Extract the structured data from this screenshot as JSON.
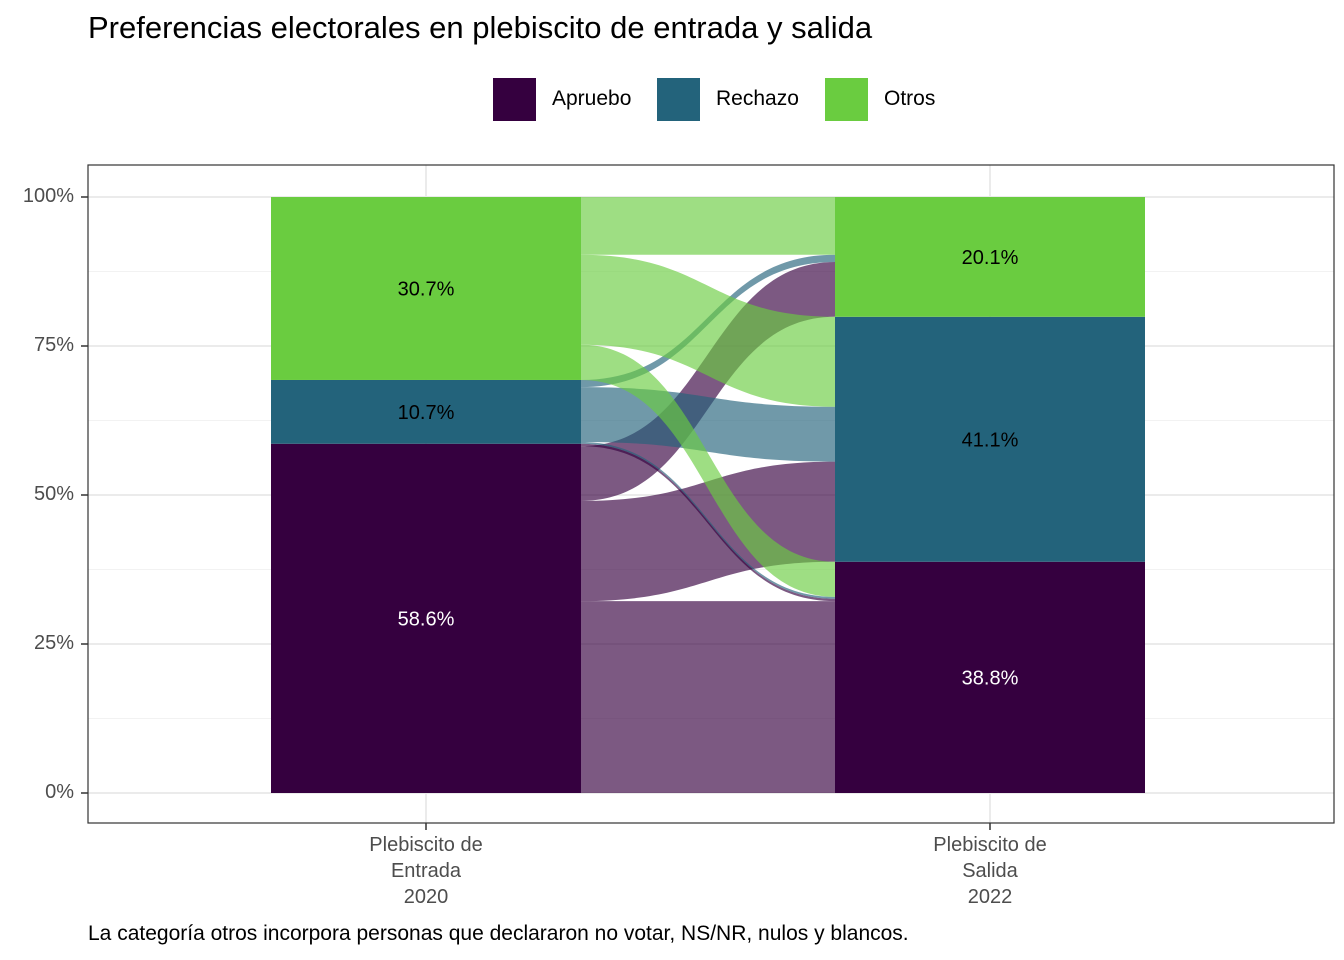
{
  "chart_data": {
    "type": "alluvial",
    "title": "Preferencias electorales en plebiscito de entrada y salida",
    "caption": "La categoría otros incorpora personas que declararon no votar, NS/NR, nulos y blancos.",
    "xlabel": "",
    "ylabel": "",
    "ylim": [
      0,
      1
    ],
    "y_ticks": [
      "0%",
      "25%",
      "50%",
      "75%",
      "100%"
    ],
    "y_tick_values": [
      0,
      0.25,
      0.5,
      0.75,
      1.0
    ],
    "legend_position": "top",
    "grid": true,
    "categories": [
      "Apruebo",
      "Rechazo",
      "Otros"
    ],
    "colors": {
      "Apruebo": "#35003f",
      "Rechazo": "#23637b",
      "Otros": "#6acc40"
    },
    "axes": [
      {
        "label_lines": [
          "Plebiscito de",
          "Entrada",
          "2020"
        ],
        "values": {
          "Apruebo": 58.6,
          "Rechazo": 10.7,
          "Otros": 30.7
        },
        "labels": {
          "Apruebo": "58.6%",
          "Rechazo": "10.7%",
          "Otros": "30.7%"
        }
      },
      {
        "label_lines": [
          "Plebiscito de",
          "Salida",
          "2022"
        ],
        "values": {
          "Apruebo": 38.8,
          "Rechazo": 41.1,
          "Otros": 20.1
        },
        "labels": {
          "Apruebo": "38.8%",
          "Rechazo": "41.1%",
          "Otros": "20.1%"
        }
      }
    ],
    "flows": [
      {
        "from": "Apruebo",
        "to": "Apruebo",
        "value": 32.2
      },
      {
        "from": "Apruebo",
        "to": "Rechazo",
        "value": 16.8
      },
      {
        "from": "Apruebo",
        "to": "Otros",
        "value": 9.2
      },
      {
        "from": "Apruebo",
        "to": "Apruebo",
        "value": 0.4
      },
      {
        "from": "Rechazo",
        "to": "Apruebo",
        "value": 0.3
      },
      {
        "from": "Rechazo",
        "to": "Rechazo",
        "value": 9.2
      },
      {
        "from": "Rechazo",
        "to": "Otros",
        "value": 1.2
      },
      {
        "from": "Otros",
        "to": "Apruebo",
        "value": 5.9
      },
      {
        "from": "Otros",
        "to": "Rechazo",
        "value": 15.1
      },
      {
        "from": "Otros",
        "to": "Otros",
        "value": 9.7
      }
    ]
  }
}
